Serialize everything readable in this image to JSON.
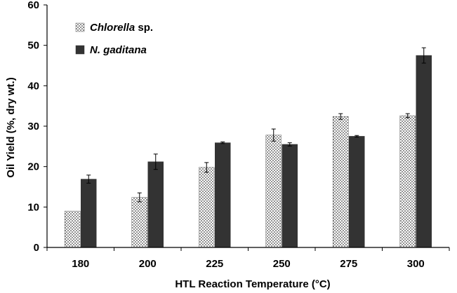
{
  "chart_data": {
    "type": "bar",
    "title": "",
    "xlabel": "HTL Reaction Temperature (°C)",
    "ylabel": "Oil Yield (%, dry wt.)",
    "categories": [
      "180",
      "200",
      "225",
      "250",
      "275",
      "300"
    ],
    "ylim": [
      0,
      60
    ],
    "yticks": [
      0,
      10,
      20,
      30,
      40,
      50,
      60
    ],
    "grid": false,
    "legend_position": "top-left",
    "series": [
      {
        "name_italic": "Chlorella",
        "name_suffix": " sp.",
        "pattern": "dotted",
        "color": "#ffffff",
        "values": [
          9,
          12.4,
          19.8,
          27.8,
          32.4,
          32.6
        ],
        "errors": [
          0,
          1.1,
          1.2,
          1.5,
          0.7,
          0.5
        ]
      },
      {
        "name_italic": "N. gaditana",
        "name_suffix": "",
        "pattern": "solid",
        "color": "#333333",
        "values": [
          16.9,
          21.2,
          25.9,
          25.5,
          27.5,
          47.5
        ],
        "errors": [
          1.0,
          1.9,
          0.2,
          0.4,
          0.2,
          1.9
        ]
      }
    ]
  }
}
